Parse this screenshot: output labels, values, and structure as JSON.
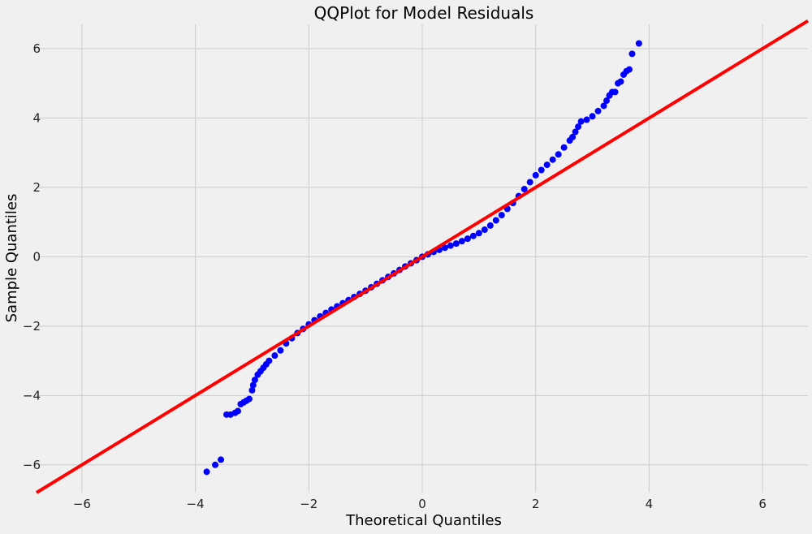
{
  "chart_data": {
    "type": "scatter",
    "title": "QQPlot for Model Residuals",
    "xlabel": "Theoretical Quantiles",
    "ylabel": "Sample Quantiles",
    "xlim": [
      -6.8,
      6.8
    ],
    "ylim": [
      -6.8,
      6.7
    ],
    "xticks": [
      -6,
      -4,
      -2,
      0,
      2,
      4,
      6
    ],
    "yticks": [
      -6,
      -4,
      -2,
      0,
      2,
      4,
      6
    ],
    "xtick_labels": [
      "−6",
      "−4",
      "−2",
      "0",
      "2",
      "4",
      "6"
    ],
    "ytick_labels": [
      "−6",
      "−4",
      "−2",
      "0",
      "2",
      "4",
      "6"
    ],
    "grid": true,
    "reference_line": {
      "slope": 1,
      "intercept": 0,
      "color": "#ff0000"
    },
    "marker_color": "#0000ff",
    "background_color": "#f0f0f0",
    "points": [
      [
        -3.8,
        -6.2
      ],
      [
        -3.65,
        -6.0
      ],
      [
        -3.55,
        -5.85
      ],
      [
        -3.45,
        -4.55
      ],
      [
        -3.38,
        -4.55
      ],
      [
        -3.3,
        -4.5
      ],
      [
        -3.25,
        -4.45
      ],
      [
        -3.2,
        -4.25
      ],
      [
        -3.15,
        -4.2
      ],
      [
        -3.1,
        -4.15
      ],
      [
        -3.05,
        -4.1
      ],
      [
        -3.0,
        -3.85
      ],
      [
        -2.98,
        -3.7
      ],
      [
        -2.95,
        -3.55
      ],
      [
        -2.9,
        -3.4
      ],
      [
        -2.85,
        -3.3
      ],
      [
        -2.8,
        -3.2
      ],
      [
        -2.75,
        -3.1
      ],
      [
        -2.7,
        -3.0
      ],
      [
        -2.6,
        -2.85
      ],
      [
        -2.5,
        -2.7
      ],
      [
        -2.4,
        -2.5
      ],
      [
        -2.3,
        -2.35
      ],
      [
        -2.2,
        -2.2
      ],
      [
        -2.1,
        -2.08
      ],
      [
        -2.0,
        -1.95
      ],
      [
        -1.9,
        -1.83
      ],
      [
        -1.8,
        -1.72
      ],
      [
        -1.7,
        -1.62
      ],
      [
        -1.6,
        -1.52
      ],
      [
        -1.5,
        -1.43
      ],
      [
        -1.4,
        -1.34
      ],
      [
        -1.3,
        -1.25
      ],
      [
        -1.2,
        -1.16
      ],
      [
        -1.1,
        -1.07
      ],
      [
        -1.0,
        -0.98
      ],
      [
        -0.9,
        -0.88
      ],
      [
        -0.8,
        -0.78
      ],
      [
        -0.7,
        -0.68
      ],
      [
        -0.6,
        -0.58
      ],
      [
        -0.5,
        -0.48
      ],
      [
        -0.4,
        -0.38
      ],
      [
        -0.3,
        -0.28
      ],
      [
        -0.2,
        -0.19
      ],
      [
        -0.1,
        -0.1
      ],
      [
        0.0,
        0.0
      ],
      [
        0.1,
        0.07
      ],
      [
        0.2,
        0.14
      ],
      [
        0.3,
        0.2
      ],
      [
        0.4,
        0.26
      ],
      [
        0.5,
        0.32
      ],
      [
        0.6,
        0.38
      ],
      [
        0.7,
        0.45
      ],
      [
        0.8,
        0.52
      ],
      [
        0.9,
        0.6
      ],
      [
        1.0,
        0.68
      ],
      [
        1.1,
        0.78
      ],
      [
        1.2,
        0.9
      ],
      [
        1.3,
        1.05
      ],
      [
        1.4,
        1.2
      ],
      [
        1.5,
        1.38
      ],
      [
        1.6,
        1.55
      ],
      [
        1.7,
        1.75
      ],
      [
        1.8,
        1.95
      ],
      [
        1.9,
        2.15
      ],
      [
        2.0,
        2.35
      ],
      [
        2.1,
        2.5
      ],
      [
        2.2,
        2.65
      ],
      [
        2.3,
        2.8
      ],
      [
        2.4,
        2.95
      ],
      [
        2.5,
        3.15
      ],
      [
        2.6,
        3.35
      ],
      [
        2.65,
        3.45
      ],
      [
        2.7,
        3.6
      ],
      [
        2.75,
        3.75
      ],
      [
        2.8,
        3.9
      ],
      [
        2.9,
        3.95
      ],
      [
        3.0,
        4.05
      ],
      [
        3.1,
        4.2
      ],
      [
        3.2,
        4.35
      ],
      [
        3.25,
        4.5
      ],
      [
        3.3,
        4.65
      ],
      [
        3.35,
        4.75
      ],
      [
        3.4,
        4.75
      ],
      [
        3.45,
        5.0
      ],
      [
        3.5,
        5.05
      ],
      [
        3.55,
        5.25
      ],
      [
        3.6,
        5.35
      ],
      [
        3.65,
        5.4
      ],
      [
        3.7,
        5.85
      ],
      [
        3.82,
        6.15
      ]
    ]
  }
}
